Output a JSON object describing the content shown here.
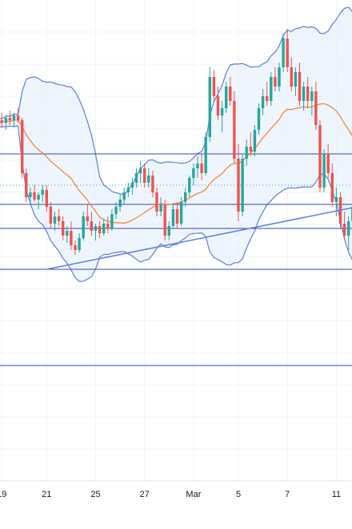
{
  "chart_data": {
    "type": "candlestick",
    "title": "",
    "xlabel": "",
    "ylabel": "",
    "grid": true,
    "colors": {
      "up": "#26a69a",
      "down": "#ef5350",
      "bollinger": "#5b7fe0",
      "bollinger_fill": "#e3eefb",
      "moving_average": "#f5883a",
      "horizontal_levels": "#2f4cb3",
      "trendline": "#5b7fe0",
      "current_price": "#26a69a"
    },
    "x_tick_labels": [
      {
        "i": 2,
        "label": "19"
      },
      {
        "i": 13,
        "label": "21"
      },
      {
        "i": 25,
        "label": "25"
      },
      {
        "i": 37,
        "label": "27"
      },
      {
        "i": 49,
        "label": "Mar"
      },
      {
        "i": 60,
        "label": "5"
      },
      {
        "i": 72,
        "label": "7"
      },
      {
        "i": 84,
        "label": "11"
      }
    ],
    "candles_ohlc_approx": [
      [
        90,
        92,
        86,
        88
      ],
      [
        88,
        91,
        85,
        90
      ],
      [
        90,
        93,
        87,
        89
      ],
      [
        89,
        92,
        86,
        91
      ],
      [
        91,
        94,
        88,
        90
      ],
      [
        90,
        93,
        87,
        92
      ],
      [
        92,
        95,
        89,
        90
      ],
      [
        90,
        91,
        66,
        68
      ],
      [
        68,
        70,
        56,
        58
      ],
      [
        58,
        62,
        55,
        60
      ],
      [
        60,
        63,
        56,
        57
      ],
      [
        57,
        60,
        53,
        59
      ],
      [
        59,
        63,
        56,
        61
      ],
      [
        61,
        63,
        52,
        54
      ],
      [
        54,
        56,
        45,
        47
      ],
      [
        47,
        52,
        44,
        50
      ],
      [
        50,
        53,
        46,
        48
      ],
      [
        48,
        50,
        40,
        42
      ],
      [
        42,
        46,
        39,
        44
      ],
      [
        44,
        48,
        36,
        38
      ],
      [
        38,
        40,
        34,
        36
      ],
      [
        36,
        43,
        35,
        41
      ],
      [
        41,
        52,
        40,
        50
      ],
      [
        50,
        55,
        46,
        48
      ],
      [
        48,
        52,
        42,
        44
      ],
      [
        44,
        47,
        40,
        46
      ],
      [
        46,
        48,
        41,
        43
      ],
      [
        43,
        49,
        42,
        47
      ],
      [
        47,
        50,
        43,
        45
      ],
      [
        45,
        53,
        44,
        51
      ],
      [
        51,
        56,
        49,
        54
      ],
      [
        54,
        59,
        52,
        57
      ],
      [
        57,
        62,
        55,
        60
      ],
      [
        60,
        64,
        58,
        62
      ],
      [
        62,
        66,
        59,
        64
      ],
      [
        64,
        70,
        62,
        68
      ],
      [
        68,
        73,
        64,
        70
      ],
      [
        70,
        72,
        62,
        64
      ],
      [
        64,
        70,
        62,
        67
      ],
      [
        67,
        69,
        58,
        60
      ],
      [
        60,
        62,
        50,
        52
      ],
      [
        52,
        58,
        50,
        55
      ],
      [
        55,
        57,
        40,
        42
      ],
      [
        42,
        48,
        40,
        46
      ],
      [
        46,
        55,
        45,
        53
      ],
      [
        53,
        56,
        45,
        47
      ],
      [
        47,
        58,
        46,
        56
      ],
      [
        56,
        62,
        54,
        60
      ],
      [
        60,
        67,
        58,
        66
      ],
      [
        66,
        72,
        63,
        70
      ],
      [
        70,
        75,
        66,
        72
      ],
      [
        72,
        76,
        65,
        68
      ],
      [
        68,
        85,
        67,
        83
      ],
      [
        83,
        112,
        81,
        108
      ],
      [
        108,
        111,
        98,
        100
      ],
      [
        100,
        104,
        90,
        92
      ],
      [
        92,
        98,
        85,
        95
      ],
      [
        95,
        106,
        93,
        104
      ],
      [
        104,
        108,
        96,
        98
      ],
      [
        98,
        102,
        72,
        74
      ],
      [
        74,
        80,
        48,
        52
      ],
      [
        52,
        76,
        50,
        74
      ],
      [
        74,
        82,
        71,
        79
      ],
      [
        79,
        85,
        75,
        77
      ],
      [
        77,
        88,
        75,
        86
      ],
      [
        86,
        97,
        84,
        95
      ],
      [
        95,
        103,
        92,
        100
      ],
      [
        100,
        106,
        96,
        98
      ],
      [
        98,
        110,
        96,
        108
      ],
      [
        108,
        112,
        102,
        104
      ],
      [
        104,
        114,
        102,
        112
      ],
      [
        112,
        126,
        110,
        124
      ],
      [
        124,
        128,
        110,
        112
      ],
      [
        112,
        116,
        102,
        104
      ],
      [
        104,
        112,
        100,
        110
      ],
      [
        110,
        114,
        96,
        98
      ],
      [
        98,
        106,
        94,
        104
      ],
      [
        104,
        108,
        95,
        98
      ],
      [
        98,
        104,
        92,
        102
      ],
      [
        102,
        106,
        86,
        88
      ],
      [
        88,
        90,
        60,
        62
      ],
      [
        62,
        78,
        60,
        76
      ],
      [
        76,
        80,
        66,
        68
      ],
      [
        68,
        72,
        54,
        56
      ],
      [
        56,
        62,
        50,
        58
      ],
      [
        58,
        60,
        45,
        47
      ],
      [
        47,
        52,
        40,
        42
      ],
      [
        42,
        50,
        36,
        48
      ],
      [
        48,
        56,
        45,
        54
      ]
    ],
    "horizontal_levels": [
      76,
      55,
      45,
      28,
      -12
    ],
    "trendline": {
      "from": {
        "i": 13,
        "price": 28
      },
      "to": {
        "i": 92,
        "price": 55
      }
    },
    "current_price": 63,
    "ylim": [
      -60,
      140
    ],
    "bollinger_period": 20,
    "bollinger_stddev": 2
  }
}
